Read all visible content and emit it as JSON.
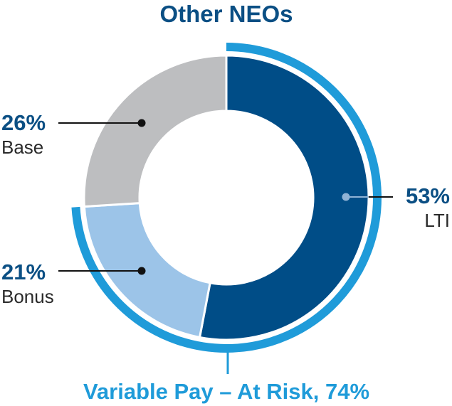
{
  "chart_data": {
    "type": "pie",
    "title": "Other NEOs",
    "slices": [
      {
        "label": "LTI",
        "value_label": "53%",
        "value": 53,
        "color": "#004d87"
      },
      {
        "label": "Bonus",
        "value_label": "21%",
        "value": 21,
        "color": "#9cc4e8"
      },
      {
        "label": "Base",
        "value_label": "26%",
        "value": 26,
        "color": "#bdbec0"
      }
    ],
    "bracket": {
      "label": "Variable Pay – At Risk, 74%",
      "value": 74,
      "covers": [
        "LTI",
        "Bonus"
      ],
      "color": "#1f9bd9"
    },
    "colors": {
      "title": "#0b4f84",
      "value_text": "#0b4f84",
      "label_text": "#2a2a2a",
      "leader": "#111111",
      "inner_marker": "#8fb3d6"
    }
  }
}
